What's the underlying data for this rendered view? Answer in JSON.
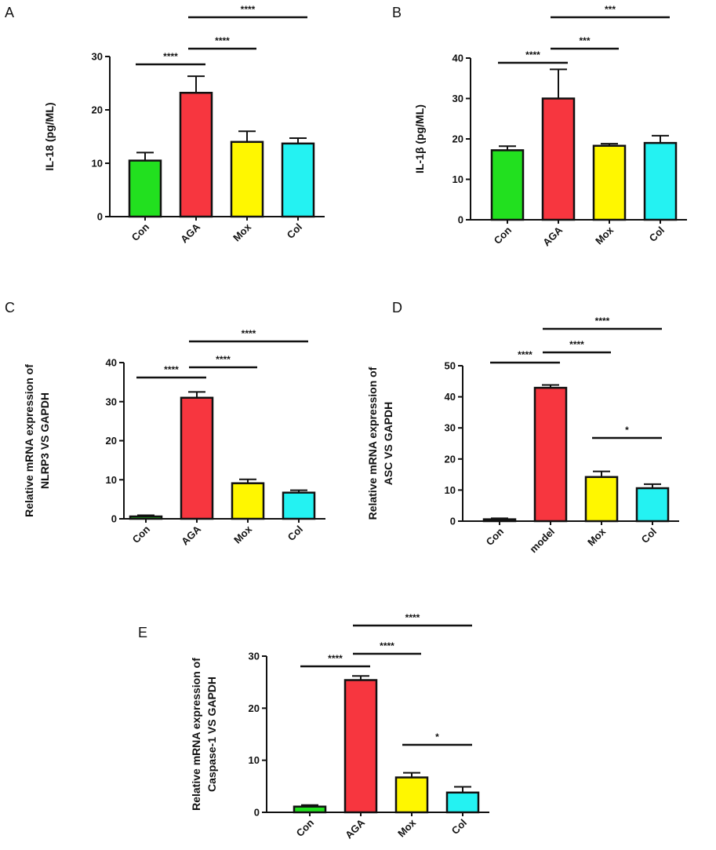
{
  "chart_data": [
    {
      "panel": "A",
      "type": "bar",
      "ylabel": "IL-18 (pg/ML)",
      "ylim": [
        0,
        30
      ],
      "yticks": [
        0,
        10,
        20,
        30
      ],
      "categories": [
        "Con",
        "AGA",
        "Mox",
        "Col"
      ],
      "values": [
        10.5,
        23.2,
        14.0,
        13.7
      ],
      "errors": [
        1.5,
        3.1,
        2.0,
        1.0
      ],
      "colors": [
        "#22e01f",
        "#f7363f",
        "#fff700",
        "#24f2f2"
      ],
      "comparisons": [
        {
          "from": 0,
          "to": 1,
          "label": "****"
        },
        {
          "from": 1,
          "to": 2,
          "label": "****"
        },
        {
          "from": 1,
          "to": 3,
          "label": "****"
        }
      ]
    },
    {
      "panel": "B",
      "type": "bar",
      "ylabel": "IL-1β (pg/ML)",
      "ylim": [
        0,
        40
      ],
      "yticks": [
        0,
        10,
        20,
        30,
        40
      ],
      "categories": [
        "Con",
        "AGA",
        "Mox",
        "Col"
      ],
      "values": [
        17.2,
        30.0,
        18.3,
        19.0
      ],
      "errors": [
        1.0,
        7.2,
        0.5,
        1.8
      ],
      "colors": [
        "#22e01f",
        "#f7363f",
        "#fff700",
        "#24f2f2"
      ],
      "comparisons": [
        {
          "from": 0,
          "to": 1,
          "label": "****"
        },
        {
          "from": 1,
          "to": 2,
          "label": "***"
        },
        {
          "from": 1,
          "to": 3,
          "label": "***"
        }
      ]
    },
    {
      "panel": "C",
      "type": "bar",
      "ylabel": [
        "Relative mRNA expression of",
        "NLRP3 VS GAPDH"
      ],
      "ylim": [
        0,
        40
      ],
      "yticks": [
        0,
        10,
        20,
        30,
        40
      ],
      "categories": [
        "Con",
        "AGA",
        "Mox",
        "Col"
      ],
      "values": [
        0.6,
        31.0,
        9.1,
        6.7
      ],
      "errors": [
        0.3,
        1.5,
        1.0,
        0.6
      ],
      "colors": [
        "#22e01f",
        "#f7363f",
        "#fff700",
        "#24f2f2"
      ],
      "comparisons": [
        {
          "from": 0,
          "to": 1,
          "label": "****"
        },
        {
          "from": 1,
          "to": 2,
          "label": "****"
        },
        {
          "from": 1,
          "to": 3,
          "label": "****"
        }
      ]
    },
    {
      "panel": "D",
      "type": "bar",
      "ylabel": [
        "Relative mRNA expression of",
        "ASC VS GAPDH"
      ],
      "ylim": [
        0,
        50
      ],
      "yticks": [
        0,
        10,
        20,
        30,
        40,
        50
      ],
      "categories": [
        "Con",
        "model",
        "Mox",
        "Col"
      ],
      "values": [
        0.6,
        42.9,
        14.2,
        10.6
      ],
      "errors": [
        0.3,
        0.9,
        1.8,
        1.3
      ],
      "colors": [
        "#22e01f",
        "#f7363f",
        "#fff700",
        "#24f2f2"
      ],
      "comparisons": [
        {
          "from": 0,
          "to": 1,
          "label": "****"
        },
        {
          "from": 1,
          "to": 2,
          "label": "****"
        },
        {
          "from": 1,
          "to": 3,
          "label": "****"
        },
        {
          "from": 2,
          "to": 3,
          "label": "*"
        }
      ]
    },
    {
      "panel": "E",
      "type": "bar",
      "ylabel": [
        "Relative mRNA expression of",
        "Caspase-1 VS GAPDH"
      ],
      "ylim": [
        0,
        30
      ],
      "yticks": [
        0,
        10,
        20,
        30
      ],
      "categories": [
        "Con",
        "AGA",
        "Mox",
        "Col"
      ],
      "values": [
        1.1,
        25.4,
        6.7,
        3.8
      ],
      "errors": [
        0.3,
        0.8,
        0.9,
        1.1
      ],
      "colors": [
        "#22e01f",
        "#f7363f",
        "#fff700",
        "#24f2f2"
      ],
      "comparisons": [
        {
          "from": 0,
          "to": 1,
          "label": "****"
        },
        {
          "from": 1,
          "to": 2,
          "label": "****"
        },
        {
          "from": 1,
          "to": 3,
          "label": "****"
        },
        {
          "from": 2,
          "to": 3,
          "label": "*"
        }
      ]
    }
  ]
}
